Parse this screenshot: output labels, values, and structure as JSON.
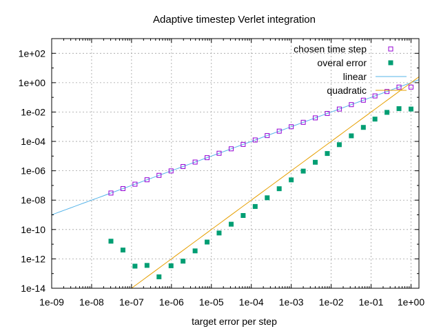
{
  "chart_data": {
    "type": "scatter",
    "title": "Adaptive timestep Verlet integration",
    "xlabel": "target error per step",
    "ylabel": "",
    "xscale": "log",
    "yscale": "log",
    "xlim": [
      1e-09,
      1.58
    ],
    "ylim": [
      1e-14,
      1000.0
    ],
    "grid": true,
    "legend_position": "top-right",
    "x_ticks": [
      {
        "value": 1e-09,
        "label": "1e-09"
      },
      {
        "value": 1e-08,
        "label": "1e-08"
      },
      {
        "value": 1e-07,
        "label": "1e-07"
      },
      {
        "value": 1e-06,
        "label": "1e-06"
      },
      {
        "value": 1e-05,
        "label": "1e-05"
      },
      {
        "value": 0.0001,
        "label": "1e-04"
      },
      {
        "value": 0.001,
        "label": "1e-03"
      },
      {
        "value": 0.01,
        "label": "1e-02"
      },
      {
        "value": 0.1,
        "label": "1e-01"
      },
      {
        "value": 1,
        "label": "1e+00"
      }
    ],
    "y_ticks": [
      {
        "value": 1e-14,
        "label": "1e-14"
      },
      {
        "value": 1e-12,
        "label": "1e-12"
      },
      {
        "value": 1e-10,
        "label": "1e-10"
      },
      {
        "value": 1e-08,
        "label": "1e-08"
      },
      {
        "value": 1e-06,
        "label": "1e-06"
      },
      {
        "value": 0.0001,
        "label": "1e-04"
      },
      {
        "value": 0.01,
        "label": "1e-02"
      },
      {
        "value": 1,
        "label": "1e+00"
      },
      {
        "value": 100,
        "label": "1e+02"
      }
    ],
    "series": [
      {
        "name": "chosen time step",
        "type": "scatter",
        "marker": "open-square",
        "color": "#9400d3",
        "x": [
          3.05e-08,
          6.1e-08,
          1.22e-07,
          2.44e-07,
          4.88e-07,
          9.77e-07,
          1.95e-06,
          3.91e-06,
          7.81e-06,
          1.56e-05,
          3.13e-05,
          6.25e-05,
          0.000125,
          0.00025,
          0.0005,
          0.001,
          0.002,
          0.004,
          0.008,
          0.016,
          0.032,
          0.064,
          0.125,
          0.25,
          0.5,
          1.0
        ],
        "y": [
          3.05e-08,
          6.1e-08,
          1.22e-07,
          2.44e-07,
          4.88e-07,
          9.77e-07,
          1.95e-06,
          3.91e-06,
          7.81e-06,
          1.56e-05,
          3.13e-05,
          6.25e-05,
          0.000125,
          0.00025,
          0.0005,
          0.001,
          0.002,
          0.004,
          0.008,
          0.016,
          0.032,
          0.064,
          0.125,
          0.25,
          0.5,
          0.5
        ]
      },
      {
        "name": "overal error",
        "type": "scatter",
        "marker": "filled-square",
        "color": "#009e73",
        "x": [
          3.05e-08,
          6.1e-08,
          1.22e-07,
          2.44e-07,
          4.88e-07,
          9.77e-07,
          1.95e-06,
          3.91e-06,
          7.81e-06,
          1.56e-05,
          3.13e-05,
          6.25e-05,
          0.000125,
          0.00025,
          0.0005,
          0.001,
          0.002,
          0.004,
          0.008,
          0.016,
          0.032,
          0.064,
          0.125,
          0.25,
          0.5,
          1.0
        ],
        "y": [
          1.6e-11,
          4e-12,
          3.2e-13,
          3.6e-13,
          6e-14,
          3.4e-13,
          7e-13,
          3.5e-12,
          1.4e-11,
          5.8e-11,
          2.3e-10,
          9e-10,
          3.7e-09,
          1.45e-08,
          6e-08,
          2.4e-07,
          9.5e-07,
          3.8e-06,
          1.5e-05,
          6e-05,
          0.00024,
          0.0009,
          0.0033,
          0.0095,
          0.017,
          0.016
        ]
      },
      {
        "name": "linear",
        "type": "line",
        "color": "#56b4e9",
        "formula": "y = x",
        "x": [
          1e-09,
          1.58
        ],
        "y": [
          1e-09,
          1.58
        ]
      },
      {
        "name": "quadratic",
        "type": "line",
        "color": "#e69f00",
        "formula": "y = x^2",
        "x": [
          1e-09,
          1.58
        ],
        "y": [
          1e-18,
          2.5
        ]
      }
    ]
  }
}
